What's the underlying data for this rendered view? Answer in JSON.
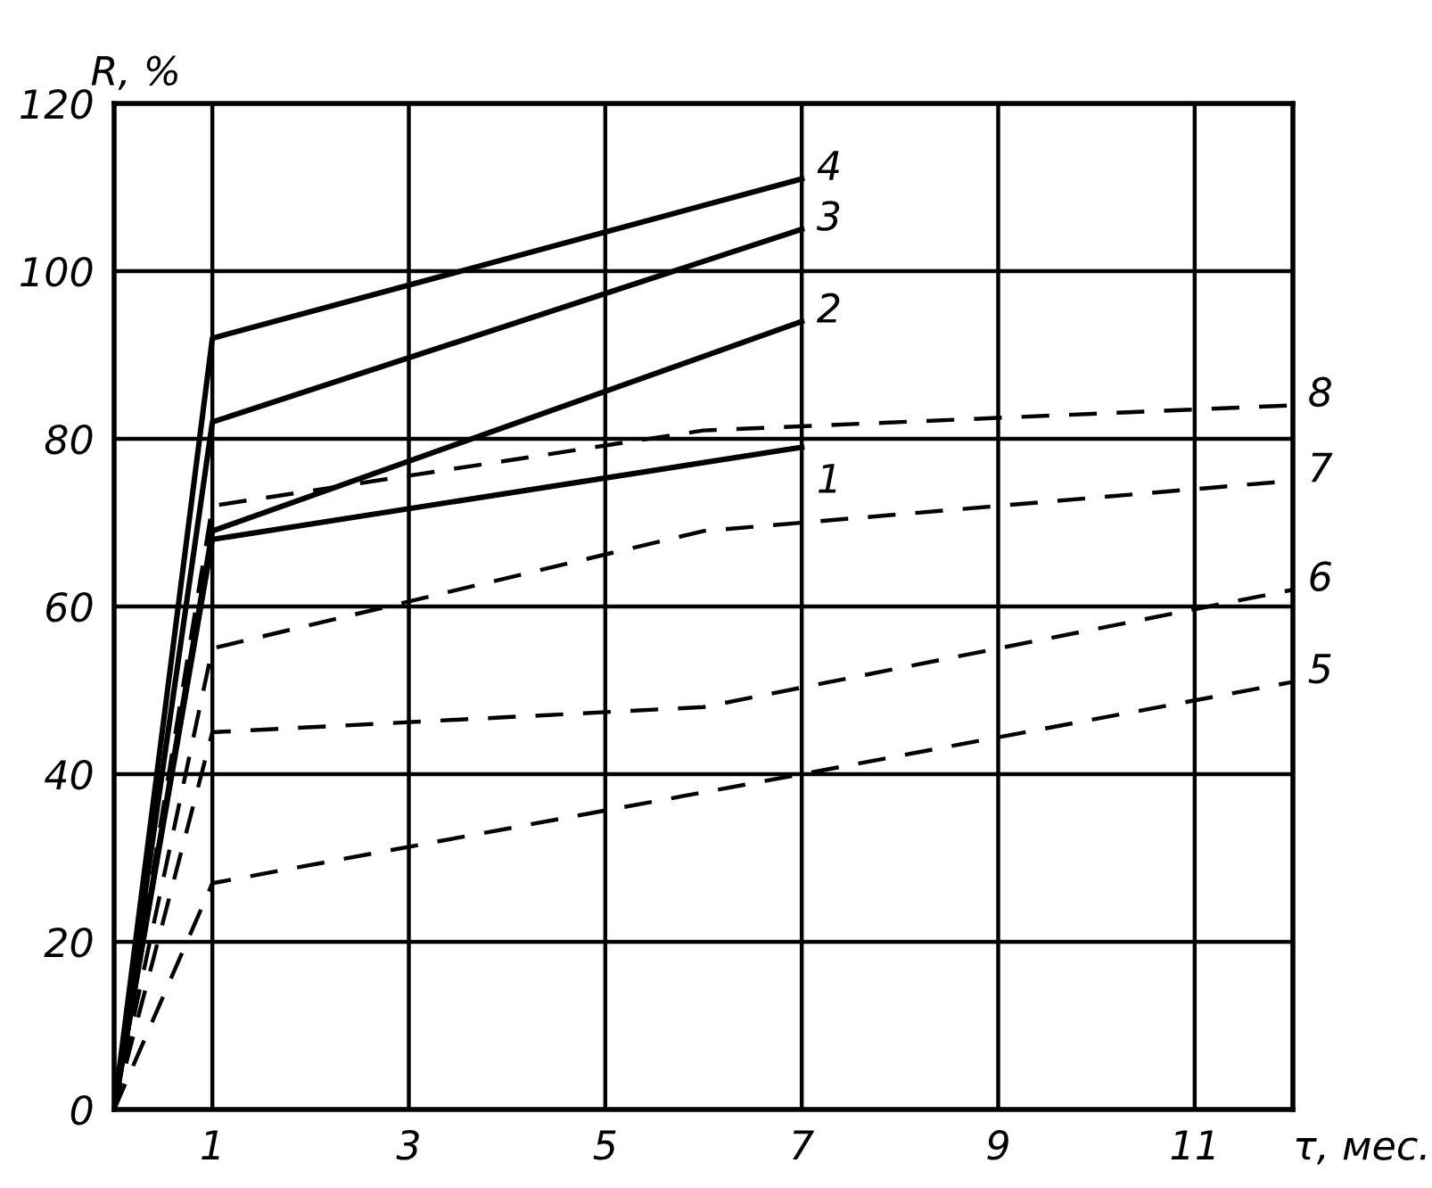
{
  "chart_data": {
    "type": "line",
    "xlabel": "τ, мес.",
    "ylabel": "R, %",
    "xlim": [
      0,
      12
    ],
    "ylim": [
      0,
      120
    ],
    "xticks": [
      1,
      3,
      5,
      7,
      9,
      11
    ],
    "yticks": [
      0,
      20,
      40,
      60,
      80,
      100,
      120
    ],
    "grid": true,
    "legend": false,
    "marker": "none",
    "series": [
      {
        "name": "1",
        "color": "#000000",
        "line_style": "solid",
        "x": [
          0,
          1,
          7
        ],
        "values": [
          0,
          68,
          79
        ]
      },
      {
        "name": "2",
        "color": "#000000",
        "line_style": "solid",
        "x": [
          0,
          1,
          7
        ],
        "values": [
          0,
          69,
          94
        ]
      },
      {
        "name": "3",
        "color": "#000000",
        "line_style": "solid",
        "x": [
          0,
          1,
          7
        ],
        "values": [
          0,
          82,
          105
        ]
      },
      {
        "name": "4",
        "color": "#000000",
        "line_style": "solid",
        "x": [
          0,
          1,
          7
        ],
        "values": [
          0,
          92,
          111
        ]
      },
      {
        "name": "5",
        "color": "#000000",
        "line_style": "dashed",
        "x": [
          0,
          1,
          7,
          12
        ],
        "values": [
          0,
          27,
          40,
          51
        ]
      },
      {
        "name": "6",
        "color": "#000000",
        "line_style": "dashed",
        "x": [
          0,
          1,
          6,
          12
        ],
        "values": [
          0,
          45,
          48,
          62
        ]
      },
      {
        "name": "7",
        "color": "#000000",
        "line_style": "dashed",
        "x": [
          0,
          1,
          6,
          12
        ],
        "values": [
          0,
          55,
          69,
          75
        ]
      },
      {
        "name": "8",
        "color": "#000000",
        "line_style": "dashed",
        "x": [
          0,
          1,
          6,
          12
        ],
        "values": [
          0,
          72,
          81,
          84
        ]
      }
    ]
  }
}
